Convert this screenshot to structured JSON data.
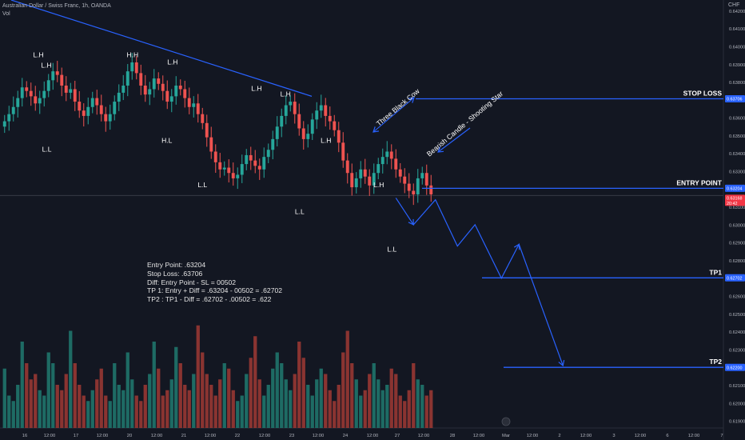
{
  "header": {
    "symbol_line": "Australian Dollar / Swiss Franc, 1h, OANDA",
    "indicator": "Vol"
  },
  "currency": "CHF",
  "notes": [
    "Entry Point: .63204",
    "Stop Loss: .63706",
    "Diff: Entry Point - SL = 00502",
    "TP 1: Entry + Diff = .63204 - 00502 = .62702",
    "TP2 : TP1 - Diff = .62702 - .00502 = .622"
  ],
  "levels": [
    {
      "label": "STOP LOSS",
      "price": 0.63706,
      "tag": "0.63706",
      "color": "#2962ff"
    },
    {
      "label": "ENTRY POINT",
      "price": 0.63204,
      "tag": "0.63204",
      "color": "#2962ff"
    },
    {
      "label": "TP1",
      "price": 0.62702,
      "tag": "0.62702",
      "color": "#2962ff"
    },
    {
      "label": "TP2",
      "price": 0.622,
      "tag": "0.62200",
      "color": "#2962ff"
    }
  ],
  "current_price": {
    "value": 0.63168,
    "tag": "0.63168",
    "countdown": "20:42",
    "color": "#f23645"
  },
  "annotations": {
    "pattern1": "Three Black Cow",
    "pattern2": "Bearish Candle - Shooting Star"
  },
  "swing_labels": [
    {
      "text": "L.H",
      "x": 8.2,
      "price": 0.6394
    },
    {
      "text": "L.H",
      "x": 10.0,
      "price": 0.6388
    },
    {
      "text": "L.L",
      "x": 10.1,
      "price": 0.6341
    },
    {
      "text": "H.H",
      "x": 29.6,
      "price": 0.6394
    },
    {
      "text": "L.H",
      "x": 38.7,
      "price": 0.639
    },
    {
      "text": "H.L",
      "x": 37.4,
      "price": 0.6346
    },
    {
      "text": "L.L",
      "x": 45.5,
      "price": 0.6321
    },
    {
      "text": "L.H",
      "x": 57.8,
      "price": 0.6375
    },
    {
      "text": "L.H",
      "x": 64.4,
      "price": 0.6372
    },
    {
      "text": "L.H",
      "x": 73.6,
      "price": 0.6346
    },
    {
      "text": "L.L",
      "x": 67.6,
      "price": 0.6306
    },
    {
      "text": "L.H",
      "x": 85.6,
      "price": 0.6321
    },
    {
      "text": "L.L",
      "x": 88.6,
      "price": 0.6285
    }
  ],
  "chart_data": {
    "type": "candlestick",
    "x_ticks": [
      "16",
      "12:00",
      "17",
      "12:00",
      "20",
      "12:00",
      "21",
      "12:00",
      "22",
      "12:00",
      "23",
      "12:00",
      "24",
      "12:00",
      "27",
      "12:00",
      "28",
      "12:00",
      "Mar",
      "12:00",
      "2",
      "12:00",
      "3",
      "12:00",
      "6",
      "12:00",
      "7"
    ],
    "y_ticks": [
      "0.64200",
      "0.64100",
      "0.64000",
      "0.63900",
      "0.63800",
      "0.63700",
      "0.63600",
      "0.63500",
      "0.63400",
      "0.63300",
      "0.63200",
      "0.63100",
      "0.63000",
      "0.62900",
      "0.62800",
      "0.62700",
      "0.62600",
      "0.62500",
      "0.62400",
      "0.62300",
      "0.62200",
      "0.62100",
      "0.62000",
      "0.61900"
    ],
    "ylim": [
      0.6186,
      0.6426
    ],
    "xlim": [
      0,
      135
    ],
    "closes": [
      0.6358,
      0.6362,
      0.6366,
      0.6371,
      0.6377,
      0.6375,
      0.6372,
      0.6368,
      0.6371,
      0.6375,
      0.6381,
      0.6386,
      0.6384,
      0.6378,
      0.6374,
      0.6376,
      0.6369,
      0.6364,
      0.6361,
      0.6366,
      0.6371,
      0.6367,
      0.6362,
      0.6358,
      0.6362,
      0.6369,
      0.6374,
      0.6378,
      0.6386,
      0.6391,
      0.6385,
      0.6378,
      0.6373,
      0.6376,
      0.6382,
      0.6379,
      0.6375,
      0.6369,
      0.6372,
      0.6378,
      0.6376,
      0.6371,
      0.6366,
      0.6368,
      0.6362,
      0.6357,
      0.6349,
      0.6341,
      0.6335,
      0.6331,
      0.6332,
      0.6329,
      0.6326,
      0.6328,
      0.6334,
      0.6339,
      0.6336,
      0.6333,
      0.6331,
      0.6338,
      0.6342,
      0.6348,
      0.6355,
      0.6361,
      0.6367,
      0.6369,
      0.6362,
      0.6354,
      0.6348,
      0.6351,
      0.6359,
      0.6364,
      0.6367,
      0.6361,
      0.6358,
      0.6353,
      0.6346,
      0.6336,
      0.6329,
      0.6321,
      0.6326,
      0.6331,
      0.6327,
      0.6322,
      0.6329,
      0.6334,
      0.6338,
      0.6341,
      0.6337,
      0.6331,
      0.6327,
      0.6323,
      0.6319,
      0.6317,
      0.6326,
      0.6329,
      0.6322,
      0.6317
    ],
    "volume_relative": [
      0.55,
      0.3,
      0.25,
      0.4,
      0.8,
      0.6,
      0.45,
      0.5,
      0.35,
      0.3,
      0.7,
      0.6,
      0.4,
      0.35,
      0.5,
      0.9,
      0.6,
      0.4,
      0.3,
      0.25,
      0.35,
      0.45,
      0.55,
      0.3,
      0.25,
      0.6,
      0.4,
      0.35,
      0.7,
      0.45,
      0.3,
      0.25,
      0.4,
      0.5,
      0.8,
      0.55,
      0.3,
      0.35,
      0.45,
      0.75,
      0.6,
      0.4,
      0.35,
      0.5,
      0.95,
      0.7,
      0.5,
      0.4,
      0.3,
      0.45,
      0.6,
      0.55,
      0.35,
      0.25,
      0.3,
      0.5,
      0.65,
      0.85,
      0.45,
      0.3,
      0.4,
      0.55,
      0.7,
      0.6,
      0.45,
      0.35,
      0.5,
      0.8,
      0.65,
      0.4,
      0.3,
      0.45,
      0.55,
      0.5,
      0.35,
      0.25,
      0.4,
      0.7,
      0.9,
      0.6,
      0.45,
      0.3,
      0.35,
      0.5,
      0.6,
      0.45,
      0.35,
      0.4,
      0.55,
      0.5,
      0.3,
      0.25,
      0.35,
      0.6,
      0.45,
      0.4,
      0.3,
      0.35
    ],
    "projection_path": [
      [
        89,
        0.6315
      ],
      [
        93,
        0.63
      ],
      [
        98,
        0.6314
      ],
      [
        103,
        0.6288
      ],
      [
        107,
        0.63
      ],
      [
        113,
        0.627
      ],
      [
        117,
        0.6289
      ],
      [
        127,
        0.6221
      ]
    ],
    "trendline": [
      [
        14,
        0.6426
      ],
      [
        70,
        0.6372
      ]
    ],
    "colors": {
      "up": "#26a69a",
      "down": "#ef5350",
      "lines": "#2962ff"
    }
  }
}
